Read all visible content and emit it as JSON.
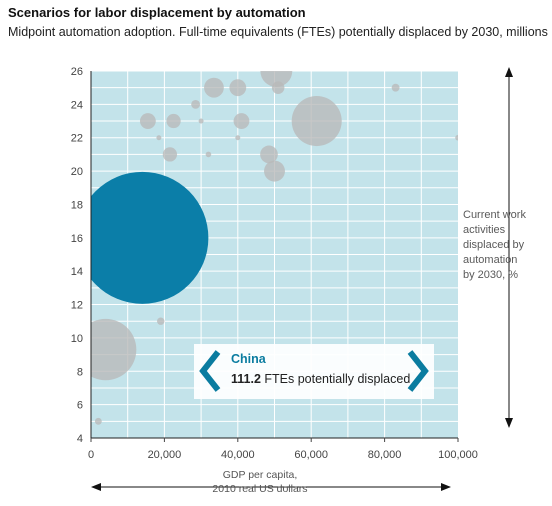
{
  "title": "Scenarios for labor displacement by automation",
  "subtitle": "Midpoint automation adoption. Full-time equivalents (FTEs) potentially displaced by 2030, millions",
  "callout": {
    "country": "China",
    "value": "111.2",
    "value_suffix": " FTEs potentially displaced",
    "prev_icon": "chevron-left-icon",
    "next_icon": "chevron-right-icon"
  },
  "colors": {
    "plot_bg": "#c3e3ea",
    "grid": "#ffffff",
    "highlight": "#0b7ea8",
    "bubble": "#b9b9b9",
    "callout_accent": "#0a7ca0"
  },
  "chart_data": {
    "type": "scatter",
    "xlabel_lines": [
      "GDP per capita,",
      "2010 real US dollars"
    ],
    "ylabel_lines": [
      "Current work",
      "activities",
      "displaced by",
      "automation",
      "by 2030, %"
    ],
    "xlim": [
      0,
      100000
    ],
    "ylim": [
      4,
      26
    ],
    "x_ticks": [
      0,
      20000,
      40000,
      60000,
      80000,
      100000
    ],
    "x_tick_labels": [
      "0",
      "20,000",
      "40,000",
      "60,000",
      "80,000",
      "100,000"
    ],
    "y_ticks": [
      4,
      6,
      8,
      10,
      12,
      14,
      16,
      18,
      20,
      22,
      24,
      26
    ],
    "y_tick_labels": [
      "4",
      "6",
      "8",
      "10",
      "12",
      "14",
      "16",
      "18",
      "20",
      "22",
      "24",
      "26"
    ],
    "grid": true,
    "highlight": {
      "name": "China",
      "x": 14000,
      "y": 16.0,
      "size": 111.2
    },
    "bubbles": [
      {
        "x": 50500,
        "y": 26.0,
        "size": 6.5
      },
      {
        "x": 33500,
        "y": 25.0,
        "size": 2.5
      },
      {
        "x": 40000,
        "y": 25.0,
        "size": 1.8
      },
      {
        "x": 51000,
        "y": 25.0,
        "size": 1.0
      },
      {
        "x": 28500,
        "y": 24.0,
        "size": 0.5
      },
      {
        "x": 61500,
        "y": 23.0,
        "size": 16.0
      },
      {
        "x": 15500,
        "y": 23.0,
        "size": 1.6
      },
      {
        "x": 22500,
        "y": 23.0,
        "size": 1.3
      },
      {
        "x": 41000,
        "y": 23.0,
        "size": 1.6
      },
      {
        "x": 30000,
        "y": 23.0,
        "size": 0.05
      },
      {
        "x": 83000,
        "y": 25.0,
        "size": 0.4
      },
      {
        "x": 100000,
        "y": 22.0,
        "size": 0.2
      },
      {
        "x": 18500,
        "y": 22.0,
        "size": 0.12
      },
      {
        "x": 40000,
        "y": 22.0,
        "size": 0.12
      },
      {
        "x": 21500,
        "y": 21.0,
        "size": 1.3
      },
      {
        "x": 32000,
        "y": 21.0,
        "size": 0.2
      },
      {
        "x": 48500,
        "y": 21.0,
        "size": 2.0
      },
      {
        "x": 50000,
        "y": 20.0,
        "size": 2.8
      },
      {
        "x": 19000,
        "y": 11.0,
        "size": 0.35
      },
      {
        "x": 4000,
        "y": 9.3,
        "size": 24.0
      },
      {
        "x": 2000,
        "y": 5.0,
        "size": 0.3
      }
    ]
  }
}
